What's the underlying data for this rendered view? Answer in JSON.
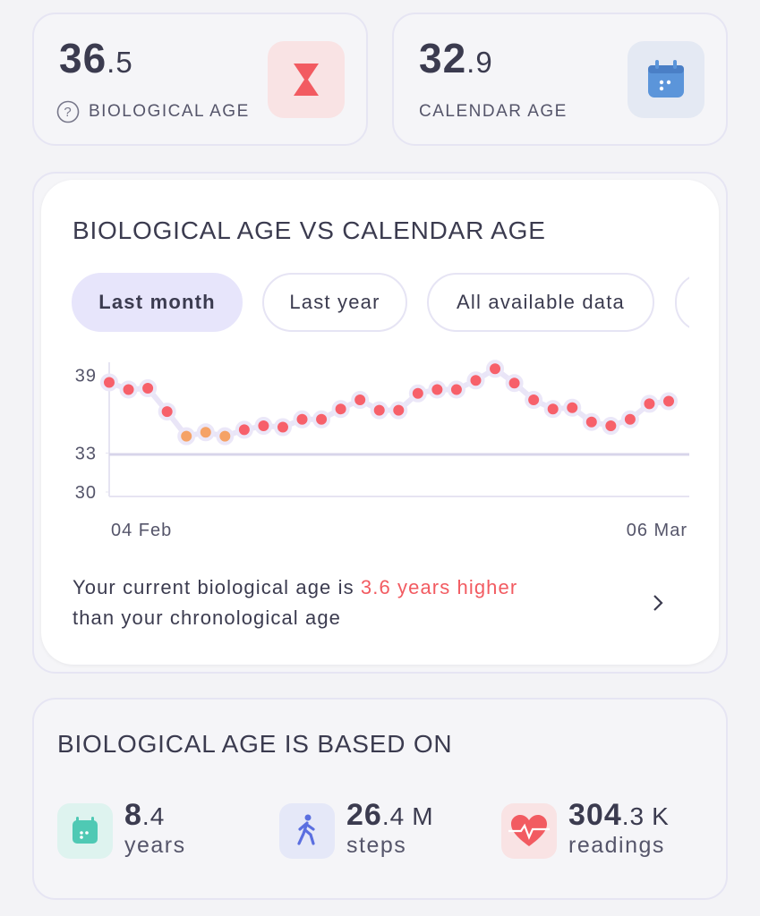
{
  "stats": [
    {
      "whole": "36",
      "fraction": ".5",
      "label": "BIOLOGICAL AGE"
    },
    {
      "whole": "32",
      "fraction": ".9",
      "label": "CALENDAR AGE"
    }
  ],
  "chart_card": {
    "title": "BIOLOGICAL AGE VS CALENDAR AGE",
    "tabs": [
      "Last month",
      "Last year",
      "All available data"
    ],
    "summary": {
      "prefix": "Your current biological age is",
      "highlight": "3.6 years higher",
      "line2": "than your chronological age"
    }
  },
  "chart_data": {
    "type": "line",
    "categories": [
      "04 Feb",
      null,
      null,
      null,
      null,
      null,
      null,
      null,
      null,
      null,
      null,
      null,
      null,
      null,
      null,
      null,
      null,
      null,
      null,
      null,
      null,
      null,
      null,
      null,
      null,
      null,
      null,
      null,
      null,
      "06 Mar"
    ],
    "series": [
      {
        "color": "#f7606a",
        "values": [
          38.45,
          37.9,
          38.0,
          36.2,
          34.3,
          34.6,
          34.3,
          34.8,
          35.1,
          35.0,
          35.6,
          35.6,
          36.4,
          37.1,
          36.3,
          36.3,
          37.6,
          37.9,
          37.9,
          38.6,
          39.5,
          38.4,
          37.1,
          36.4,
          36.5,
          35.4,
          35.1,
          35.6,
          36.8,
          37.0
        ],
        "colors": [
          "#f7606a",
          "#f7606a",
          "#f7606a",
          "#f7606a",
          "#f5a266",
          "#f5a266",
          "#f5a266",
          "#f7606a",
          "#f7606a",
          "#f7606a",
          "#f7606a",
          "#f7606a",
          "#f7606a",
          "#f7606a",
          "#f7606a",
          "#f7606a",
          "#f7606a",
          "#f7606a",
          "#f7606a",
          "#f7606a",
          "#f7606a",
          "#f7606a",
          "#f7606a",
          "#f7606a",
          "#f7606a",
          "#f7606a",
          "#f7606a",
          "#f7606a",
          "#f7606a",
          "#f7606a"
        ]
      }
    ],
    "reference_line": 32.9,
    "reference_color": "#d8d5ea",
    "ylim": [
      30,
      40
    ],
    "yticks": [
      30,
      33,
      39
    ]
  },
  "based_on": {
    "title": "BIOLOGICAL AGE IS BASED ON",
    "items": [
      {
        "whole": "8",
        "fraction": ".4",
        "label": "years"
      },
      {
        "whole": "26",
        "fraction": ".4",
        "unit": "M",
        "label": "steps"
      },
      {
        "whole": "304",
        "fraction": ".3",
        "unit": "K",
        "label": "readings"
      }
    ]
  }
}
